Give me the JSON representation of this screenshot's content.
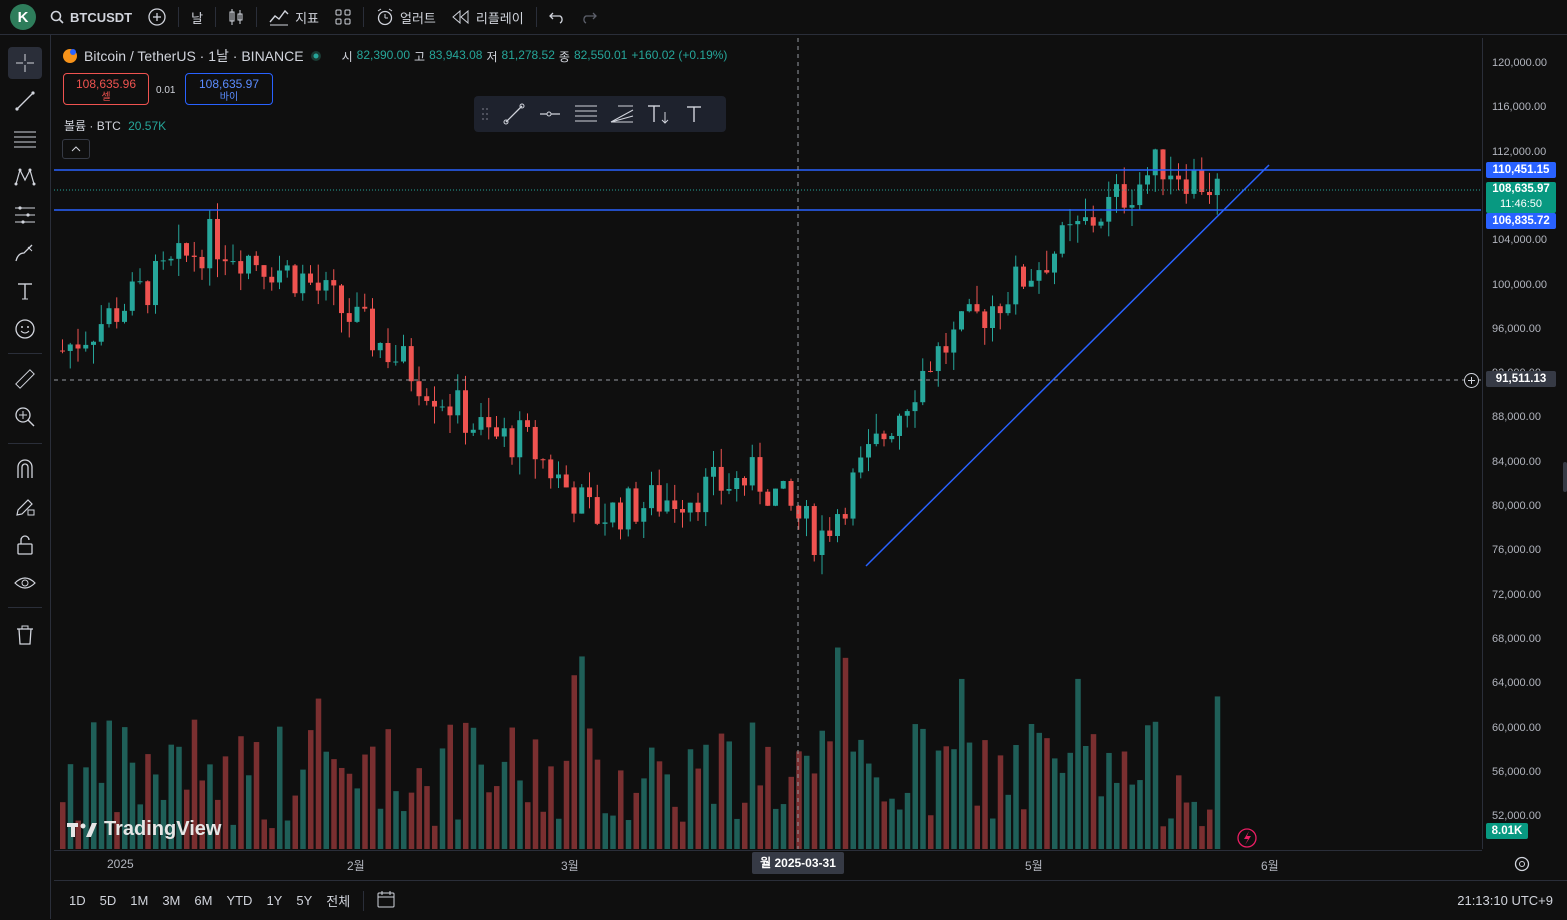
{
  "topbar": {
    "avatar": "K",
    "symbol": "BTCUSDT",
    "interval": "날",
    "indicators": "지표",
    "alerts": "얼러트",
    "replay": "리플레이"
  },
  "legend": {
    "title": "Bitcoin / TetherUS · 1날 · BINANCE",
    "o_label": "시",
    "o": "82,390.00",
    "h_label": "고",
    "h": "83,943.08",
    "l_label": "저",
    "l": "81,278.52",
    "c_label": "종",
    "c": "82,550.01",
    "change": "+160.02 (+0.19%)"
  },
  "trade": {
    "sell_price": "108,635.96",
    "sell_label": "셀",
    "spread": "0.01",
    "buy_price": "108,635.97",
    "buy_label": "바이"
  },
  "volume_legend": {
    "label": "볼륨 · BTC",
    "value": "20.57K"
  },
  "price_axis": {
    "ticks": [
      "120,000.00",
      "116,000.00",
      "112,000.00",
      "108,000.00",
      "104,000.00",
      "100,000.00",
      "96,000.00",
      "92,000.00",
      "88,000.00",
      "84,000.00",
      "80,000.00",
      "76,000.00",
      "72,000.00",
      "68,000.00",
      "64,000.00",
      "60,000.00",
      "56,000.00",
      "52,000.00"
    ],
    "upper_line": "110,451.15",
    "current": "108,635.97",
    "countdown": "11:46:50",
    "lower_line": "106,835.72",
    "crosshair": "91,511.13",
    "volume": "8.01K"
  },
  "time_axis": {
    "labels": [
      "2025",
      "2월",
      "3월",
      "4월",
      "5월",
      "6월"
    ],
    "crosshair": "월 2025-03-31"
  },
  "bottom": {
    "ranges": [
      "1D",
      "5D",
      "1M",
      "3M",
      "6M",
      "YTD",
      "1Y",
      "5Y",
      "전체"
    ],
    "clock": "21:13:10 UTC+9"
  },
  "branding": "TradingView",
  "colors": {
    "up": "#26a69a",
    "down": "#ef5350",
    "hline": "#2962ff",
    "trend": "#2962ff"
  },
  "chart_data": {
    "type": "candlestick",
    "title": "Bitcoin / TetherUS · 1날 · BINANCE",
    "ylim": [
      50000,
      122000
    ],
    "horizontal_lines": [
      110451.15,
      106835.72
    ],
    "trendline": {
      "from": [
        "2025-04-09",
        74500
      ],
      "to": [
        "2025-05-29",
        110800
      ]
    },
    "monthly_path": [
      {
        "date": "2025-01-01",
        "close": 94000
      },
      {
        "date": "2025-01-20",
        "close": 104000
      },
      {
        "date": "2025-02-01",
        "close": 100500
      },
      {
        "date": "2025-02-25",
        "close": 86000
      },
      {
        "date": "2025-03-01",
        "close": 86000
      },
      {
        "date": "2025-03-10",
        "close": 79000
      },
      {
        "date": "2025-03-31",
        "close": 82550
      },
      {
        "date": "2025-04-08",
        "close": 77000
      },
      {
        "date": "2025-04-22",
        "close": 93000
      },
      {
        "date": "2025-05-08",
        "close": 103000
      },
      {
        "date": "2025-05-22",
        "close": 111000
      },
      {
        "date": "2025-05-29",
        "close": 108636
      }
    ]
  }
}
